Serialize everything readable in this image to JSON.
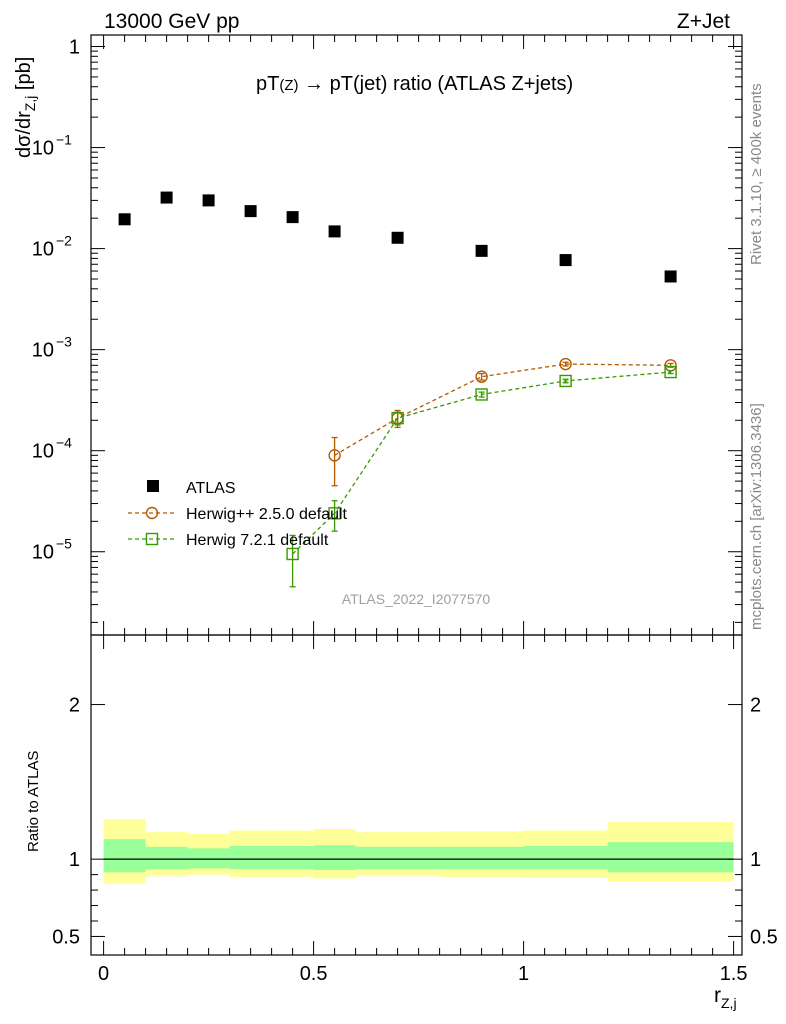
{
  "header": {
    "left": "13000 GeV pp",
    "right": "Z+Jet"
  },
  "plot": {
    "title_main": "pT",
    "title_sub1": "(Z)",
    "title_arrow": " → ",
    "title_rest": "pT(jet) ratio (ATLAS Z+jets)",
    "watermark": "ATLAS_2022_I2077570",
    "ylabel_main": "dσ/dr",
    "ylabel_sub": "Z,j",
    "ylabel_unit": " [pb]",
    "xlabel_main": "r",
    "xlabel_sub": "Z,j",
    "ratio_ylabel": "Ratio to ATLAS",
    "side_text_top": "Rivet 3.1.10, ≥ 400k events",
    "side_text_bottom": "mcplots.cern.ch [arXiv:1306.3436]"
  },
  "legend": {
    "atlas": "ATLAS",
    "herwigpp": "Herwig++ 2.5.0 default",
    "herwig7": "Herwig 7.2.1 default"
  },
  "ticks": {
    "y_main": [
      {
        "label": "1",
        "exp": "",
        "value": 1
      },
      {
        "label": "10",
        "exp": "−1",
        "value": 0.1
      },
      {
        "label": "10",
        "exp": "−2",
        "value": 0.01
      },
      {
        "label": "10",
        "exp": "−3",
        "value": 0.001
      },
      {
        "label": "10",
        "exp": "−4",
        "value": 0.0001
      },
      {
        "label": "10",
        "exp": "−5",
        "value": 1e-05
      }
    ],
    "x": [
      {
        "label": "0",
        "value": 0
      },
      {
        "label": "0.5",
        "value": 0.5
      },
      {
        "label": "1",
        "value": 1
      },
      {
        "label": "1.5",
        "value": 1.5
      }
    ],
    "y_ratio": [
      {
        "label": "0.5",
        "value": 0.5
      },
      {
        "label": "1",
        "value": 1
      },
      {
        "label": "2",
        "value": 2
      }
    ]
  },
  "chart_data": {
    "type": "scatter",
    "title": "pT(Z) → pT(jet) ratio (ATLAS Z+jets)",
    "xlabel": "r_Z,j",
    "ylabel": "dσ/dr_Z,j [pb]",
    "yscale": "log",
    "xlim": [
      -0.03,
      1.52
    ],
    "ylim": [
      1.5e-06,
      1.3
    ],
    "series": [
      {
        "name": "ATLAS",
        "color": "#000000",
        "x": [
          0.05,
          0.15,
          0.25,
          0.35,
          0.45,
          0.55,
          0.7,
          0.9,
          1.1,
          1.35
        ],
        "xerr": [
          0.05,
          0.05,
          0.05,
          0.05,
          0.05,
          0.05,
          0.1,
          0.1,
          0.1,
          0.15
        ],
        "values": [
          0.0195,
          0.032,
          0.03,
          0.0235,
          0.0205,
          0.0148,
          0.0128,
          0.0095,
          0.0077,
          0.0053
        ]
      },
      {
        "name": "Herwig++ 2.5.0 default",
        "color": "#b35900",
        "x": [
          0.55,
          0.7,
          0.9,
          1.1,
          1.35
        ],
        "values": [
          9e-05,
          0.00021,
          0.00054,
          0.00072,
          0.0007
        ],
        "err_lo": [
          4.5e-05,
          4e-05,
          4e-05,
          3e-05,
          3e-05
        ],
        "err_hi": [
          4.5e-05,
          4e-05,
          4e-05,
          3e-05,
          3e-05
        ]
      },
      {
        "name": "Herwig 7.2.1 default",
        "color": "#3a9900",
        "x": [
          0.45,
          0.55,
          0.7,
          0.9,
          1.1,
          1.35
        ],
        "values": [
          9.5e-06,
          2.4e-05,
          0.00021,
          0.00036,
          0.00049,
          0.0006
        ],
        "err_lo": [
          5e-06,
          8e-06,
          3e-05,
          2e-05,
          2e-05,
          2e-05
        ],
        "err_hi": [
          5e-06,
          8e-06,
          3e-05,
          2e-05,
          2e-05,
          2e-05
        ]
      }
    ],
    "ratio": {
      "ylim": [
        0.38,
        2.45
      ],
      "bins": [
        {
          "lo": 0.0,
          "hi": 0.1,
          "stat": [
            0.915,
            1.13
          ],
          "total": [
            0.84,
            1.26
          ]
        },
        {
          "lo": 0.1,
          "hi": 0.2,
          "stat": [
            0.935,
            1.08
          ],
          "total": [
            0.89,
            1.175
          ]
        },
        {
          "lo": 0.2,
          "hi": 0.3,
          "stat": [
            0.94,
            1.07
          ],
          "total": [
            0.9,
            1.165
          ]
        },
        {
          "lo": 0.3,
          "hi": 0.4,
          "stat": [
            0.935,
            1.085
          ],
          "total": [
            0.885,
            1.185
          ]
        },
        {
          "lo": 0.4,
          "hi": 0.5,
          "stat": [
            0.935,
            1.085
          ],
          "total": [
            0.885,
            1.185
          ]
        },
        {
          "lo": 0.5,
          "hi": 0.6,
          "stat": [
            0.93,
            1.09
          ],
          "total": [
            0.875,
            1.195
          ]
        },
        {
          "lo": 0.6,
          "hi": 0.8,
          "stat": [
            0.935,
            1.08
          ],
          "total": [
            0.89,
            1.175
          ]
        },
        {
          "lo": 0.8,
          "hi": 1.0,
          "stat": [
            0.935,
            1.08
          ],
          "total": [
            0.885,
            1.18
          ]
        },
        {
          "lo": 1.0,
          "hi": 1.2,
          "stat": [
            0.935,
            1.085
          ],
          "total": [
            0.88,
            1.185
          ]
        },
        {
          "lo": 1.2,
          "hi": 1.5,
          "stat": [
            0.915,
            1.11
          ],
          "total": [
            0.855,
            1.24
          ]
        }
      ],
      "stat_color": "#99ff99",
      "total_color": "#ffff99"
    }
  }
}
